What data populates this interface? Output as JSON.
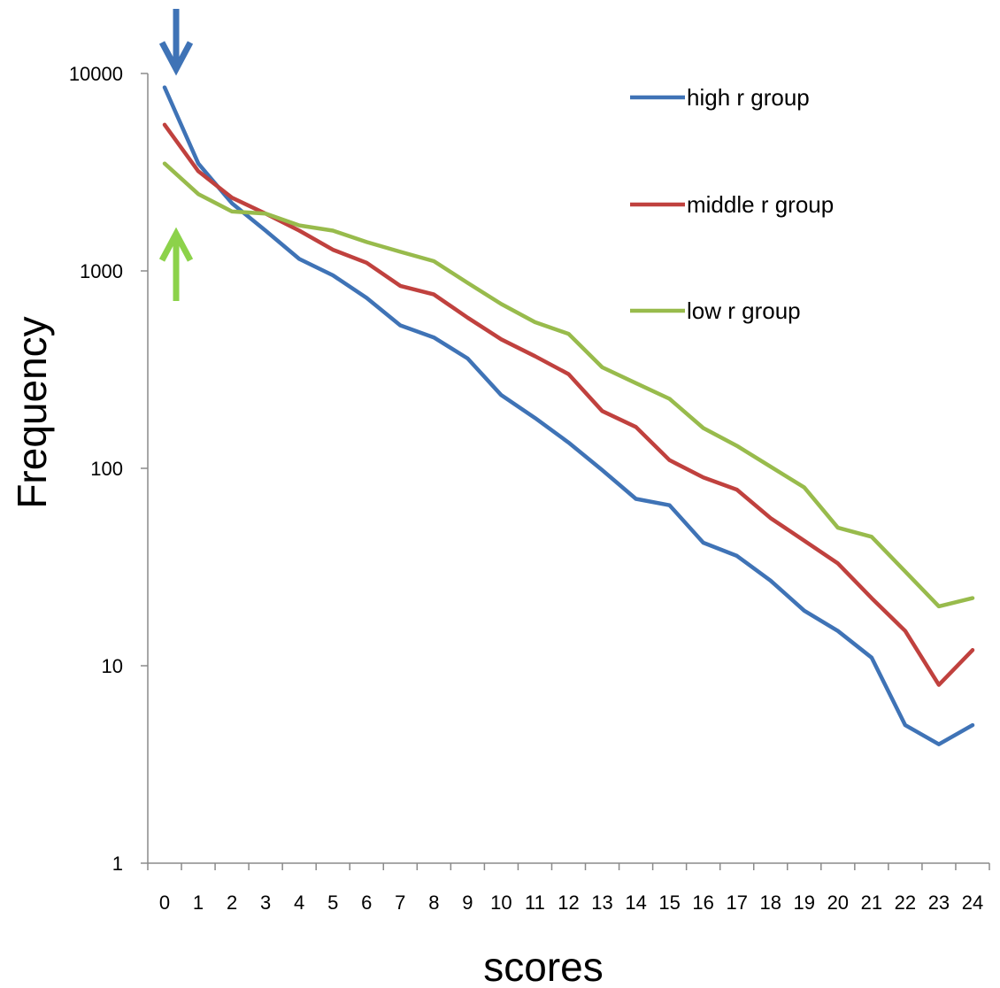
{
  "chart_data": {
    "type": "line",
    "title": "",
    "xlabel": "scores",
    "ylabel": "Frequency",
    "yscale": "log",
    "ylim": [
      1,
      10000
    ],
    "yticks": [
      "1",
      "10",
      "100",
      "1000",
      "10000"
    ],
    "categories": [
      "0",
      "1",
      "2",
      "3",
      "4",
      "5",
      "6",
      "7",
      "8",
      "9",
      "10",
      "11",
      "12",
      "13",
      "14",
      "15",
      "16",
      "17",
      "18",
      "19",
      "20",
      "21",
      "22",
      "23",
      "24"
    ],
    "grid": false,
    "legend_position": "top-right",
    "series": [
      {
        "name": "high r group",
        "color": "#3f73b6",
        "values": [
          8500,
          3500,
          2200,
          1600,
          1150,
          950,
          730,
          530,
          460,
          360,
          235,
          180,
          135,
          98,
          70,
          65,
          42,
          36,
          27,
          19,
          15,
          11,
          5,
          4,
          5
        ]
      },
      {
        "name": "middle r group",
        "color": "#c0413e",
        "values": [
          5500,
          3200,
          2350,
          1950,
          1600,
          1280,
          1100,
          840,
          760,
          580,
          450,
          370,
          300,
          195,
          162,
          110,
          90,
          78,
          56,
          43,
          33,
          22,
          15,
          8,
          12
        ]
      },
      {
        "name": "low r group",
        "color": "#98bb4c",
        "values": [
          3500,
          2450,
          2000,
          1950,
          1700,
          1600,
          1400,
          1250,
          1120,
          870,
          680,
          550,
          480,
          325,
          270,
          225,
          160,
          130,
          102,
          80,
          50,
          45,
          30,
          20,
          22
        ]
      }
    ],
    "annotations": [
      {
        "type": "arrow-down",
        "x": "0",
        "color": "#3f73b6"
      },
      {
        "type": "arrow-up",
        "x": "0",
        "color": "#8cd24a"
      }
    ]
  }
}
